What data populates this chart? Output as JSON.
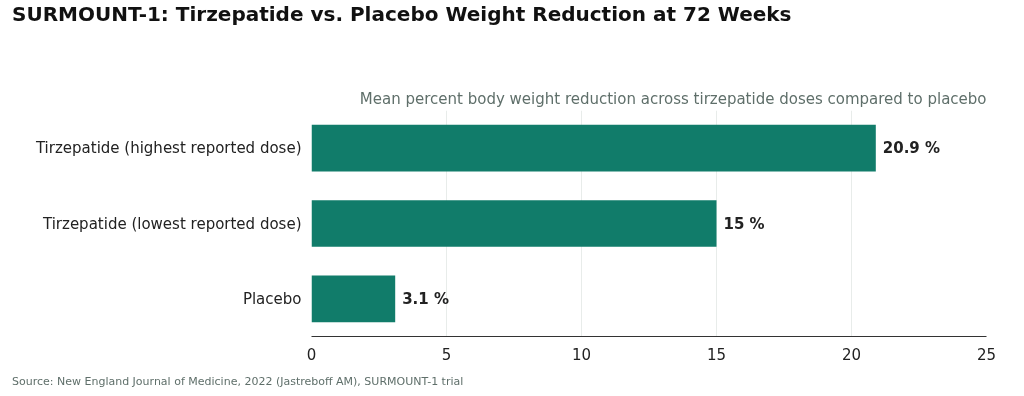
{
  "chart_data": {
    "type": "bar",
    "orientation": "horizontal",
    "title": "SURMOUNT-1: Tirzepatide vs. Placebo Weight Reduction at 72 Weeks",
    "subtitle": "Mean percent body weight reduction across tirzepatide doses compared to placebo",
    "categories": [
      "Tirzepatide (highest reported dose)",
      "Tirzepatide (lowest reported dose)",
      "Placebo"
    ],
    "values": [
      20.9,
      15,
      3.1
    ],
    "value_labels": [
      "20.9 %",
      "15 %",
      "3.1 %"
    ],
    "color": "#117c6a",
    "xlim": [
      0,
      25
    ],
    "xticks": [
      0,
      5,
      10,
      15,
      20,
      25
    ],
    "grid": "x",
    "annotations": [
      "Source: New England Journal of Medicine, 2022 (Jastreboff AM), SURMOUNT-1 trial"
    ]
  }
}
